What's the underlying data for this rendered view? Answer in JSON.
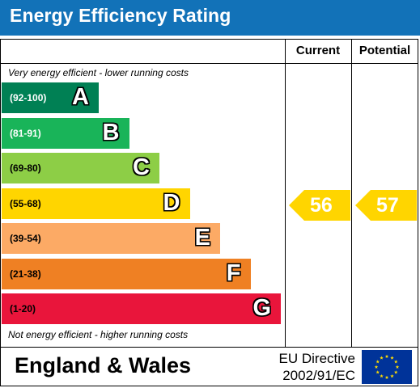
{
  "header": {
    "title": "Energy Efficiency Rating"
  },
  "columns": {
    "current": "Current",
    "potential": "Potential"
  },
  "notes": {
    "top": "Very energy efficient - lower running costs",
    "bottom": "Not energy efficient - higher running costs"
  },
  "bands": [
    {
      "letter": "A",
      "range": "(92-100)",
      "color": "#008054",
      "range_color": "#ffffff"
    },
    {
      "letter": "B",
      "range": "(81-91)",
      "color": "#19b459",
      "range_color": "#ffffff"
    },
    {
      "letter": "C",
      "range": "(69-80)",
      "color": "#8dce46",
      "range_color": "#000000"
    },
    {
      "letter": "D",
      "range": "(55-68)",
      "color": "#ffd500",
      "range_color": "#000000"
    },
    {
      "letter": "E",
      "range": "(39-54)",
      "color": "#fcaa65",
      "range_color": "#000000"
    },
    {
      "letter": "F",
      "range": "(21-38)",
      "color": "#ef8023",
      "range_color": "#000000"
    },
    {
      "letter": "G",
      "range": "(1-20)",
      "color": "#e9153b",
      "range_color": "#000000"
    }
  ],
  "ratings": {
    "current": {
      "value": "56",
      "band": "D",
      "color": "#ffd500"
    },
    "potential": {
      "value": "57",
      "band": "D",
      "color": "#ffd500"
    }
  },
  "footer": {
    "region": "England & Wales",
    "directive_line1": "EU Directive",
    "directive_line2": "2002/91/EC",
    "flag_color": "#003399",
    "star_color": "#ffdd00"
  }
}
